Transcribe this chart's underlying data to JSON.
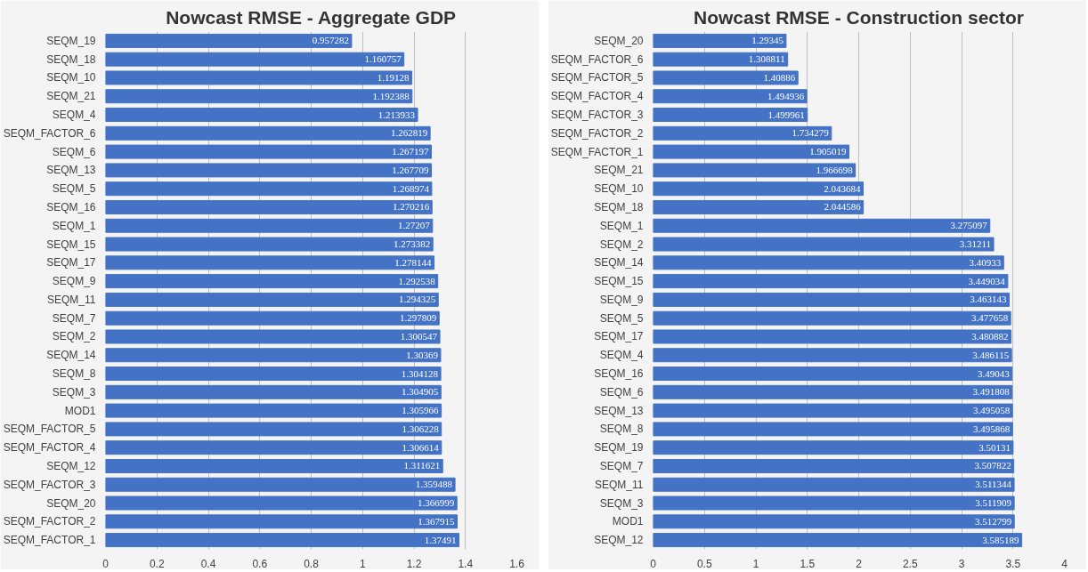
{
  "chart_data": [
    {
      "type": "bar",
      "orientation": "horizontal",
      "title": "Nowcast RMSE - Aggregate GDP",
      "color": "#4472c4",
      "grid": "x",
      "data_labels": true,
      "xlim": [
        0,
        1.6
      ],
      "xticks": [
        0,
        0.2,
        0.4,
        0.6,
        0.8,
        1,
        1.2,
        1.4,
        1.6
      ],
      "categories": [
        "SEQM_19",
        "SEQM_18",
        "SEQM_10",
        "SEQM_21",
        "SEQM_4",
        "SEQM_FACTOR_6",
        "SEQM_6",
        "SEQM_13",
        "SEQM_5",
        "SEQM_16",
        "SEQM_1",
        "SEQM_15",
        "SEQM_17",
        "SEQM_9",
        "SEQM_11",
        "SEQM_7",
        "SEQM_2",
        "SEQM_14",
        "SEQM_8",
        "SEQM_3",
        "MOD1",
        "SEQM_FACTOR_5",
        "SEQM_FACTOR_4",
        "SEQM_12",
        "SEQM_FACTOR_3",
        "SEQM_20",
        "SEQM_FACTOR_2",
        "SEQM_FACTOR_1"
      ],
      "values": [
        0.957282,
        1.160757,
        1.19128,
        1.192388,
        1.213933,
        1.262819,
        1.267197,
        1.267709,
        1.268974,
        1.270216,
        1.27207,
        1.273382,
        1.278144,
        1.292538,
        1.294325,
        1.297809,
        1.300547,
        1.30369,
        1.304128,
        1.304905,
        1.305966,
        1.306228,
        1.306614,
        1.311621,
        1.359488,
        1.366999,
        1.367915,
        1.37491
      ]
    },
    {
      "type": "bar",
      "orientation": "horizontal",
      "title": "Nowcast RMSE - Construction sector",
      "color": "#4472c4",
      "grid": "x",
      "data_labels": true,
      "xlim": [
        0,
        4
      ],
      "xticks": [
        0,
        0.5,
        1,
        1.5,
        2,
        2.5,
        3,
        3.5,
        4
      ],
      "categories": [
        "SEQM_20",
        "SEQM_FACTOR_6",
        "SEQM_FACTOR_5",
        "SEQM_FACTOR_4",
        "SEQM_FACTOR_3",
        "SEQM_FACTOR_2",
        "SEQM_FACTOR_1",
        "SEQM_21",
        "SEQM_10",
        "SEQM_18",
        "SEQM_1",
        "SEQM_2",
        "SEQM_14",
        "SEQM_15",
        "SEQM_9",
        "SEQM_5",
        "SEQM_17",
        "SEQM_4",
        "SEQM_16",
        "SEQM_6",
        "SEQM_13",
        "SEQM_8",
        "SEQM_19",
        "SEQM_7",
        "SEQM_11",
        "SEQM_3",
        "MOD1",
        "SEQM_12"
      ],
      "values": [
        1.29345,
        1.308811,
        1.40886,
        1.494936,
        1.499961,
        1.734279,
        1.905019,
        1.966698,
        2.043684,
        2.044586,
        3.275097,
        3.31211,
        3.40933,
        3.449034,
        3.463143,
        3.477658,
        3.480882,
        3.486115,
        3.49043,
        3.491808,
        3.495058,
        3.495868,
        3.50131,
        3.507822,
        3.511344,
        3.511909,
        3.512799,
        3.585189
      ]
    }
  ]
}
